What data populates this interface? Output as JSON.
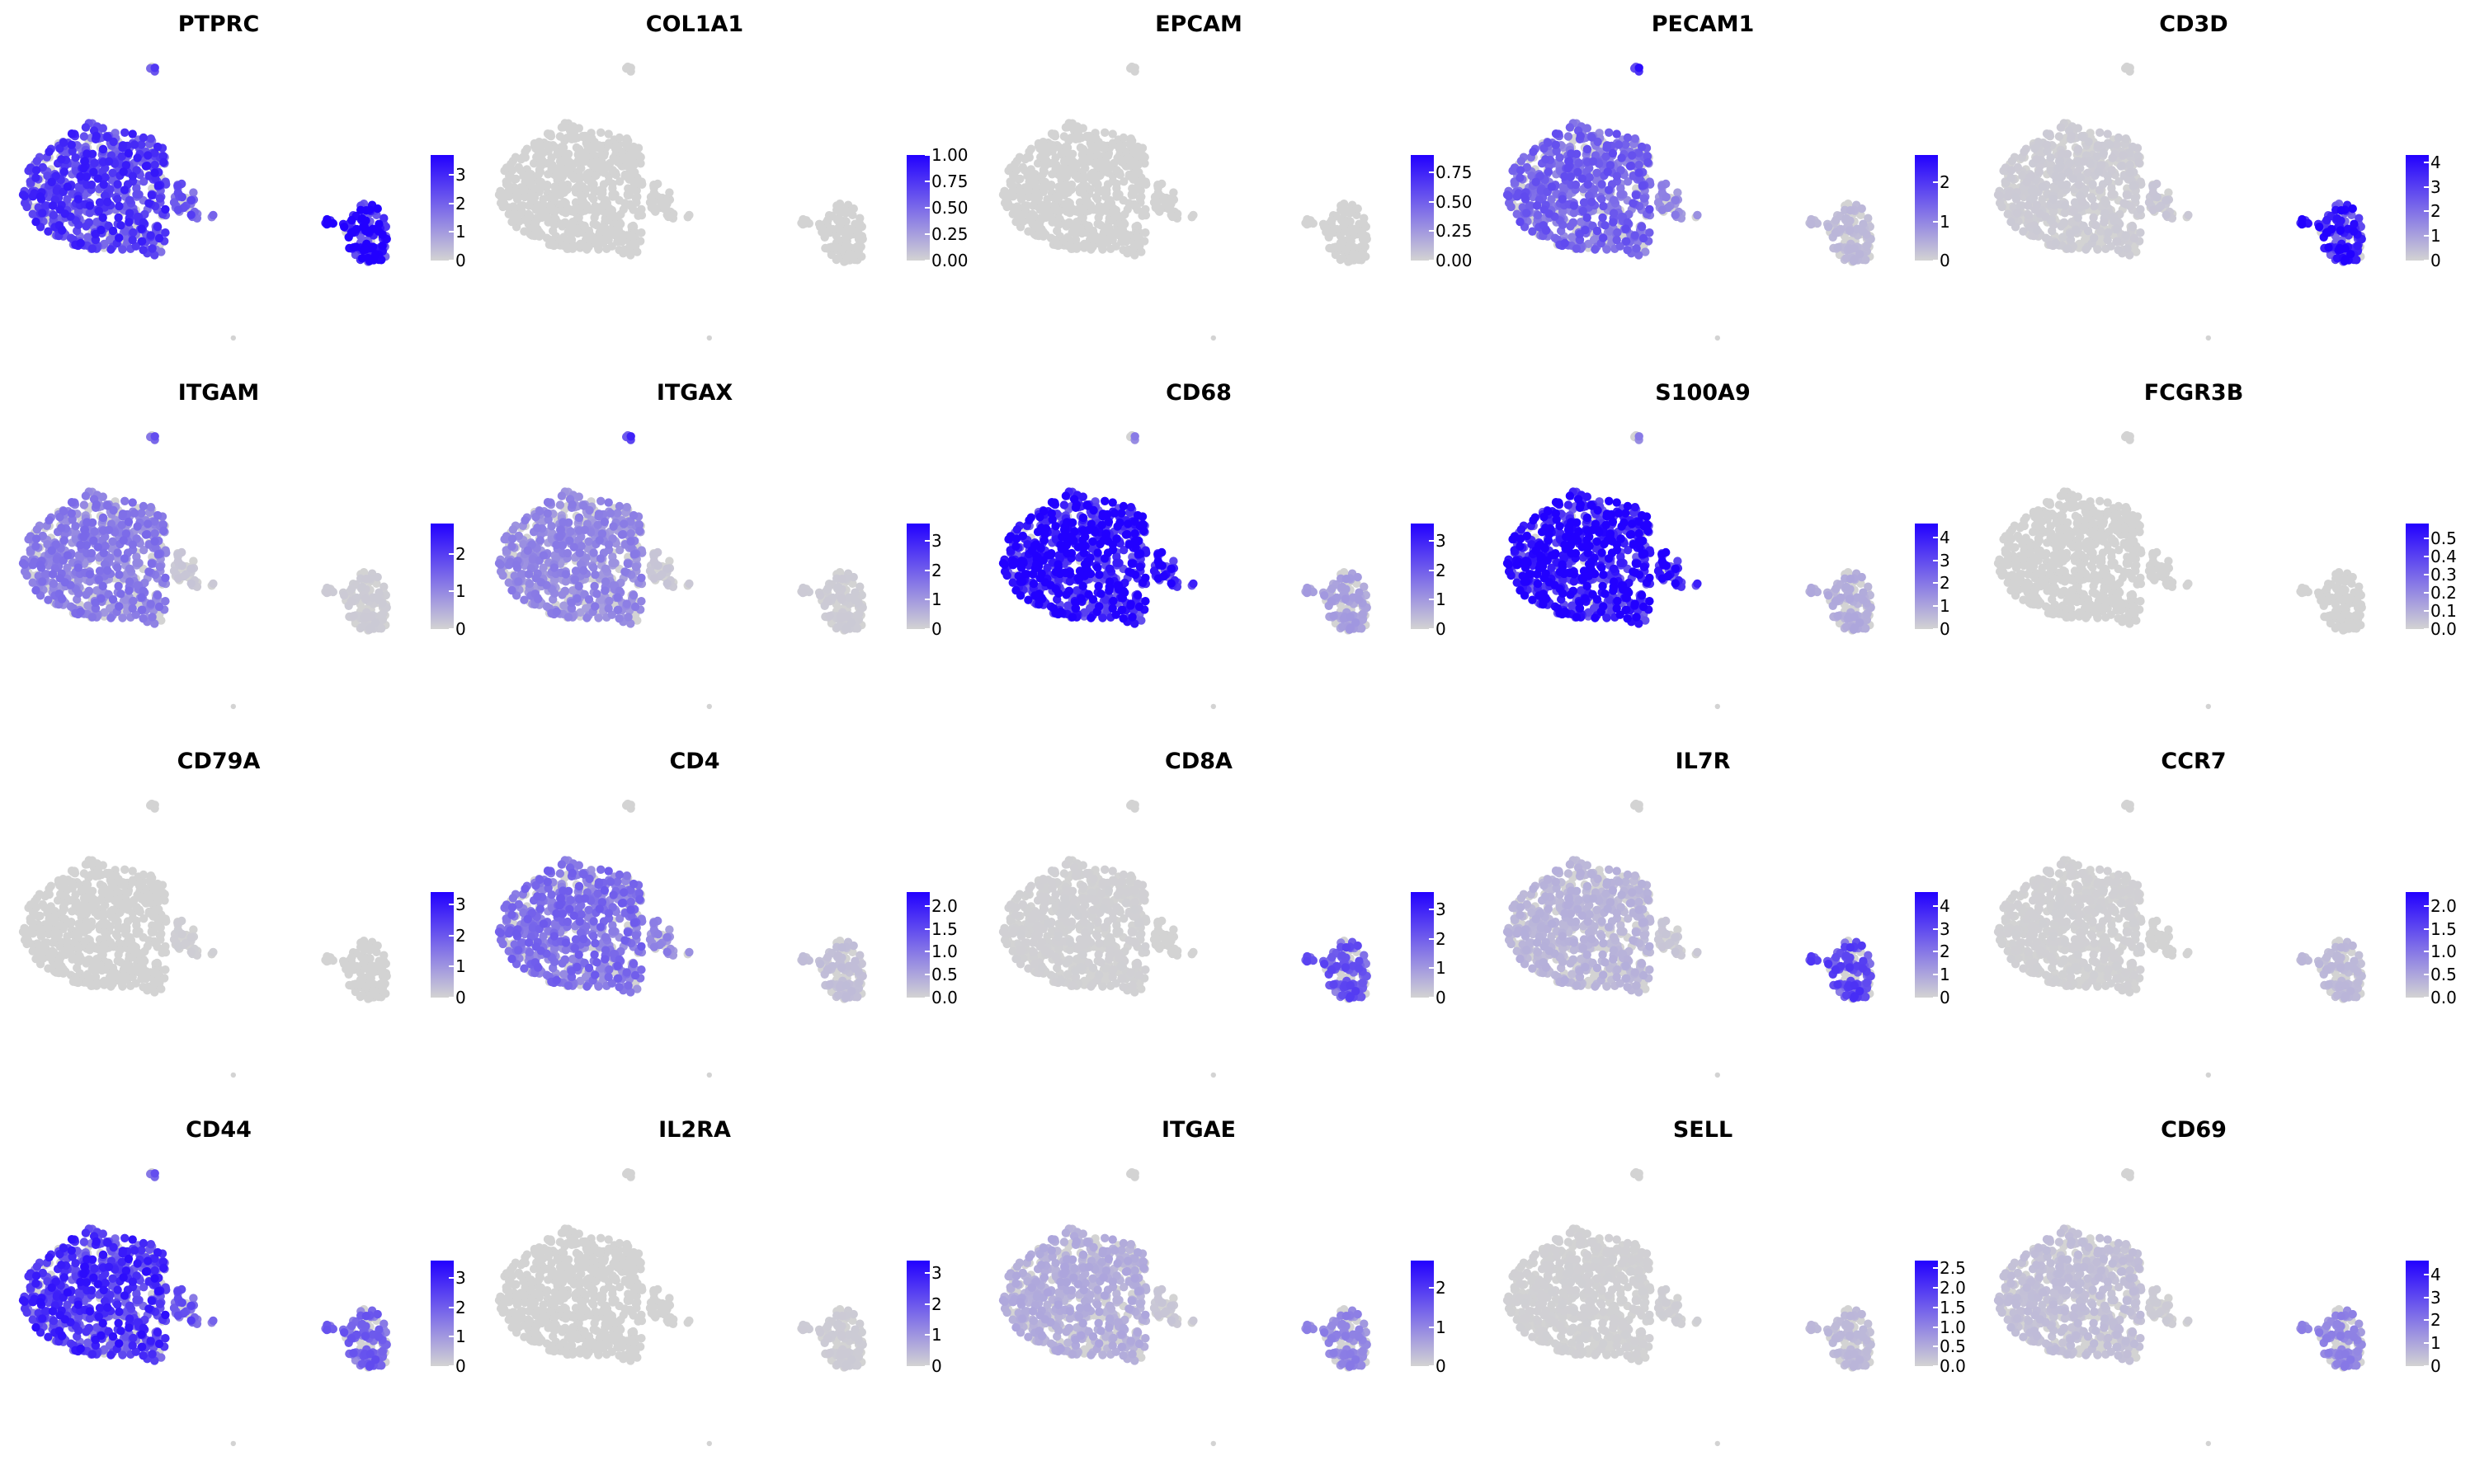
{
  "chart_data": [
    {
      "type": "scatter",
      "title": "PTPRC",
      "scale_max": 3.7,
      "color_low": "#d3d3d3",
      "color_high": "#2200ff",
      "legend_ticks": [
        "0",
        "1",
        "2",
        "3"
      ],
      "legend_values": [
        0,
        1,
        2,
        3
      ],
      "cluster_expression": {
        "myeloid": 0.62,
        "mid": 0.5,
        "lymphoid": 0.85,
        "top": 0.7
      }
    },
    {
      "type": "scatter",
      "title": "COL1A1",
      "scale_max": 1.0,
      "color_low": "#d3d3d3",
      "color_high": "#2200ff",
      "legend_ticks": [
        "0.00",
        "0.25",
        "0.50",
        "0.75",
        "1.00"
      ],
      "legend_values": [
        0,
        0.25,
        0.5,
        0.75,
        1.0
      ],
      "cluster_expression": {
        "myeloid": 0.0,
        "mid": 0.0,
        "lymphoid": 0.0,
        "top": 0.0
      }
    },
    {
      "type": "scatter",
      "title": "EPCAM",
      "scale_max": 0.9,
      "color_low": "#d3d3d3",
      "color_high": "#2200ff",
      "legend_ticks": [
        "0.00",
        "0.25",
        "0.50",
        "0.75"
      ],
      "legend_values": [
        0,
        0.25,
        0.5,
        0.75
      ],
      "cluster_expression": {
        "myeloid": 0.0,
        "mid": 0.0,
        "lymphoid": 0.0,
        "top": 0.0
      }
    },
    {
      "type": "scatter",
      "title": "PECAM1",
      "scale_max": 2.7,
      "color_low": "#d3d3d3",
      "color_high": "#2200ff",
      "legend_ticks": [
        "0",
        "1",
        "2"
      ],
      "legend_values": [
        0,
        1,
        2
      ],
      "cluster_expression": {
        "myeloid": 0.45,
        "mid": 0.3,
        "lymphoid": 0.1,
        "top": 0.9
      }
    },
    {
      "type": "scatter",
      "title": "CD3D",
      "scale_max": 4.3,
      "color_low": "#d3d3d3",
      "color_high": "#2200ff",
      "legend_ticks": [
        "0",
        "1",
        "2",
        "3",
        "4"
      ],
      "legend_values": [
        0,
        1,
        2,
        3,
        4
      ],
      "cluster_expression": {
        "myeloid": 0.03,
        "mid": 0.05,
        "lymphoid": 0.75,
        "top": 0.0
      }
    },
    {
      "type": "scatter",
      "title": "ITGAM",
      "scale_max": 2.8,
      "color_low": "#d3d3d3",
      "color_high": "#2200ff",
      "legend_ticks": [
        "0",
        "1",
        "2"
      ],
      "legend_values": [
        0,
        1,
        2
      ],
      "cluster_expression": {
        "myeloid": 0.35,
        "mid": 0.05,
        "lymphoid": 0.03,
        "top": 0.6
      }
    },
    {
      "type": "scatter",
      "title": "ITGAX",
      "scale_max": 3.6,
      "color_low": "#d3d3d3",
      "color_high": "#2200ff",
      "legend_ticks": [
        "0",
        "1",
        "2",
        "3"
      ],
      "legend_values": [
        0,
        1,
        2,
        3
      ],
      "cluster_expression": {
        "myeloid": 0.3,
        "mid": 0.05,
        "lymphoid": 0.03,
        "top": 0.8
      }
    },
    {
      "type": "scatter",
      "title": "CD68",
      "scale_max": 3.6,
      "color_low": "#d3d3d3",
      "color_high": "#2200ff",
      "legend_ticks": [
        "0",
        "1",
        "2",
        "3"
      ],
      "legend_values": [
        0,
        1,
        2,
        3
      ],
      "cluster_expression": {
        "myeloid": 0.85,
        "mid": 0.8,
        "lymphoid": 0.2,
        "top": 0.4
      }
    },
    {
      "type": "scatter",
      "title": "S100A9",
      "scale_max": 4.6,
      "color_low": "#d3d3d3",
      "color_high": "#2200ff",
      "legend_ticks": [
        "0",
        "1",
        "2",
        "3",
        "4"
      ],
      "legend_values": [
        0,
        1,
        2,
        3,
        4
      ],
      "cluster_expression": {
        "myeloid": 0.85,
        "mid": 0.8,
        "lymphoid": 0.15,
        "top": 0.4
      }
    },
    {
      "type": "scatter",
      "title": "FCGR3B",
      "scale_max": 0.58,
      "color_low": "#d3d3d3",
      "color_high": "#2200ff",
      "legend_ticks": [
        "0.0",
        "0.1",
        "0.2",
        "0.3",
        "0.4",
        "0.5"
      ],
      "legend_values": [
        0,
        0.1,
        0.2,
        0.3,
        0.4,
        0.5
      ],
      "cluster_expression": {
        "myeloid": 0.0,
        "mid": 0.0,
        "lymphoid": 0.0,
        "top": 0.0
      }
    },
    {
      "type": "scatter",
      "title": "CD79A",
      "scale_max": 3.4,
      "color_low": "#d3d3d3",
      "color_high": "#2200ff",
      "legend_ticks": [
        "0",
        "1",
        "2",
        "3"
      ],
      "legend_values": [
        0,
        1,
        2,
        3
      ],
      "cluster_expression": {
        "myeloid": 0.0,
        "mid": 0.02,
        "lymphoid": 0.0,
        "top": 0.0
      }
    },
    {
      "type": "scatter",
      "title": "CD4",
      "scale_max": 2.3,
      "color_low": "#d3d3d3",
      "color_high": "#2200ff",
      "legend_ticks": [
        "0.0",
        "0.5",
        "1.0",
        "1.5",
        "2.0"
      ],
      "legend_values": [
        0,
        0.5,
        1.0,
        1.5,
        2.0
      ],
      "cluster_expression": {
        "myeloid": 0.4,
        "mid": 0.3,
        "lymphoid": 0.08,
        "top": 0.0
      }
    },
    {
      "type": "scatter",
      "title": "CD8A",
      "scale_max": 3.6,
      "color_low": "#d3d3d3",
      "color_high": "#2200ff",
      "legend_ticks": [
        "0",
        "1",
        "2",
        "3"
      ],
      "legend_values": [
        0,
        1,
        2,
        3
      ],
      "cluster_expression": {
        "myeloid": 0.01,
        "mid": 0.0,
        "lymphoid": 0.5,
        "top": 0.0
      }
    },
    {
      "type": "scatter",
      "title": "IL7R",
      "scale_max": 4.6,
      "color_low": "#d3d3d3",
      "color_high": "#2200ff",
      "legend_ticks": [
        "0",
        "1",
        "2",
        "3",
        "4"
      ],
      "legend_values": [
        0,
        1,
        2,
        3,
        4
      ],
      "cluster_expression": {
        "myeloid": 0.12,
        "mid": 0.05,
        "lymphoid": 0.55,
        "top": 0.0
      }
    },
    {
      "type": "scatter",
      "title": "CCR7",
      "scale_max": 2.3,
      "color_low": "#d3d3d3",
      "color_high": "#2200ff",
      "legend_ticks": [
        "0.0",
        "0.5",
        "1.0",
        "1.5",
        "2.0"
      ],
      "legend_values": [
        0,
        0.5,
        1.0,
        1.5,
        2.0
      ],
      "cluster_expression": {
        "myeloid": 0.01,
        "mid": 0.0,
        "lymphoid": 0.1,
        "top": 0.0
      }
    },
    {
      "type": "scatter",
      "title": "CD44",
      "scale_max": 3.6,
      "color_low": "#d3d3d3",
      "color_high": "#2200ff",
      "legend_ticks": [
        "0",
        "1",
        "2",
        "3"
      ],
      "legend_values": [
        0,
        1,
        2,
        3
      ],
      "cluster_expression": {
        "myeloid": 0.65,
        "mid": 0.5,
        "lymphoid": 0.45,
        "top": 0.6
      }
    },
    {
      "type": "scatter",
      "title": "IL2RA",
      "scale_max": 3.4,
      "color_low": "#d3d3d3",
      "color_high": "#2200ff",
      "legend_ticks": [
        "0",
        "1",
        "2",
        "3"
      ],
      "legend_values": [
        0,
        1,
        2,
        3
      ],
      "cluster_expression": {
        "myeloid": 0.0,
        "mid": 0.0,
        "lymphoid": 0.03,
        "top": 0.0
      }
    },
    {
      "type": "scatter",
      "title": "ITGAE",
      "scale_max": 2.7,
      "color_low": "#d3d3d3",
      "color_high": "#2200ff",
      "legend_ticks": [
        "0",
        "1",
        "2"
      ],
      "legend_values": [
        0,
        1,
        2
      ],
      "cluster_expression": {
        "myeloid": 0.15,
        "mid": 0.05,
        "lymphoid": 0.3,
        "top": 0.0
      }
    },
    {
      "type": "scatter",
      "title": "SELL",
      "scale_max": 2.7,
      "color_low": "#d3d3d3",
      "color_high": "#2200ff",
      "legend_ticks": [
        "0.0",
        "0.5",
        "1.0",
        "1.5",
        "2.0",
        "2.5"
      ],
      "legend_values": [
        0,
        0.5,
        1.0,
        1.5,
        2.0,
        2.5
      ],
      "cluster_expression": {
        "myeloid": 0.01,
        "mid": 0.02,
        "lymphoid": 0.1,
        "top": 0.0
      }
    },
    {
      "type": "scatter",
      "title": "CD69",
      "scale_max": 4.6,
      "color_low": "#d3d3d3",
      "color_high": "#2200ff",
      "legend_ticks": [
        "0",
        "1",
        "2",
        "3",
        "4"
      ],
      "legend_values": [
        0,
        1,
        2,
        3,
        4
      ],
      "cluster_expression": {
        "myeloid": 0.08,
        "mid": 0.03,
        "lymphoid": 0.3,
        "top": 0.0
      }
    }
  ]
}
